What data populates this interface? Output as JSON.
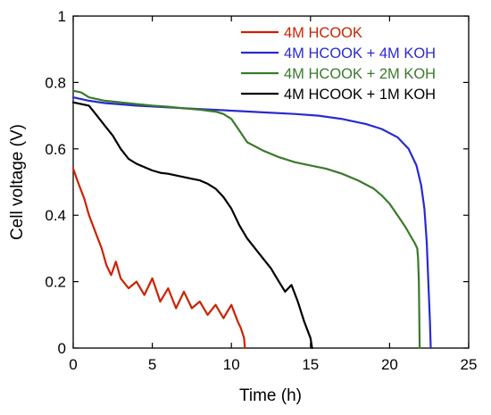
{
  "chart_data": {
    "type": "line",
    "title": "",
    "xlabel": "Time (h)",
    "ylabel": "Cell voltage (V)",
    "xlim": [
      0,
      25
    ],
    "ylim": [
      0,
      1
    ],
    "x_ticks": [
      "0",
      "5",
      "10",
      "15",
      "20",
      "25"
    ],
    "y_ticks": [
      "0",
      "0.2",
      "0.4",
      "0.6",
      "0.8",
      "1"
    ],
    "grid": false,
    "legend_position": "top-right",
    "series": [
      {
        "name": "4M HCOOK",
        "color": "#cc2200",
        "x": [
          0,
          0.3,
          0.7,
          1.0,
          1.4,
          1.8,
          2.1,
          2.4,
          2.7,
          3.0,
          3.5,
          4.0,
          4.5,
          5.0,
          5.5,
          6.0,
          6.5,
          7.0,
          7.5,
          8.0,
          8.5,
          9.0,
          9.5,
          10.0,
          10.4,
          10.6,
          10.8,
          10.85
        ],
        "y": [
          0.54,
          0.5,
          0.45,
          0.4,
          0.35,
          0.3,
          0.25,
          0.22,
          0.26,
          0.21,
          0.18,
          0.2,
          0.16,
          0.21,
          0.14,
          0.18,
          0.12,
          0.17,
          0.12,
          0.14,
          0.1,
          0.13,
          0.09,
          0.13,
          0.08,
          0.06,
          0.03,
          0.0
        ]
      },
      {
        "name": "4M HCOOK + 4M KOH",
        "color": "#2a2ad0",
        "x": [
          0,
          1,
          2,
          4,
          6,
          8,
          10,
          12,
          14,
          15.5,
          17,
          18.5,
          19.5,
          20.5,
          21.2,
          21.7,
          22.0,
          22.2,
          22.35,
          22.45,
          22.55,
          22.6
        ],
        "y": [
          0.755,
          0.745,
          0.738,
          0.73,
          0.725,
          0.72,
          0.715,
          0.71,
          0.705,
          0.7,
          0.69,
          0.675,
          0.66,
          0.635,
          0.6,
          0.55,
          0.49,
          0.42,
          0.32,
          0.2,
          0.08,
          0.0
        ]
      },
      {
        "name": "4M HCOOK + 2M KOH",
        "color": "#3a7a2a",
        "x": [
          0,
          0.5,
          1,
          2,
          3,
          4,
          5,
          6,
          7,
          8,
          9,
          9.5,
          10,
          10.5,
          11,
          12,
          13,
          14,
          15,
          16,
          17,
          18,
          19,
          19.5,
          20,
          20.5,
          21,
          21.3,
          21.6,
          21.75,
          21.8,
          21.85,
          21.9
        ],
        "y": [
          0.775,
          0.77,
          0.755,
          0.745,
          0.74,
          0.735,
          0.73,
          0.727,
          0.722,
          0.718,
          0.712,
          0.705,
          0.69,
          0.655,
          0.62,
          0.595,
          0.575,
          0.56,
          0.55,
          0.54,
          0.525,
          0.505,
          0.48,
          0.46,
          0.435,
          0.4,
          0.365,
          0.34,
          0.315,
          0.3,
          0.27,
          0.2,
          0.0
        ]
      },
      {
        "name": "4M HCOOK + 1M KOH",
        "color": "#000000",
        "x": [
          0,
          0.5,
          1,
          1.5,
          2,
          2.5,
          3,
          3.5,
          4,
          4.5,
          5,
          5.5,
          6,
          6.5,
          7,
          7.5,
          8,
          8.5,
          9,
          9.5,
          10,
          10.5,
          11,
          11.5,
          12,
          12.5,
          13,
          13.4,
          13.8,
          14.2,
          14.6,
          15.0,
          15.1
        ],
        "y": [
          0.74,
          0.735,
          0.73,
          0.7,
          0.67,
          0.64,
          0.6,
          0.57,
          0.555,
          0.545,
          0.535,
          0.528,
          0.525,
          0.52,
          0.515,
          0.51,
          0.505,
          0.495,
          0.48,
          0.455,
          0.42,
          0.37,
          0.33,
          0.3,
          0.27,
          0.24,
          0.2,
          0.17,
          0.19,
          0.14,
          0.08,
          0.03,
          0.0
        ]
      }
    ]
  }
}
